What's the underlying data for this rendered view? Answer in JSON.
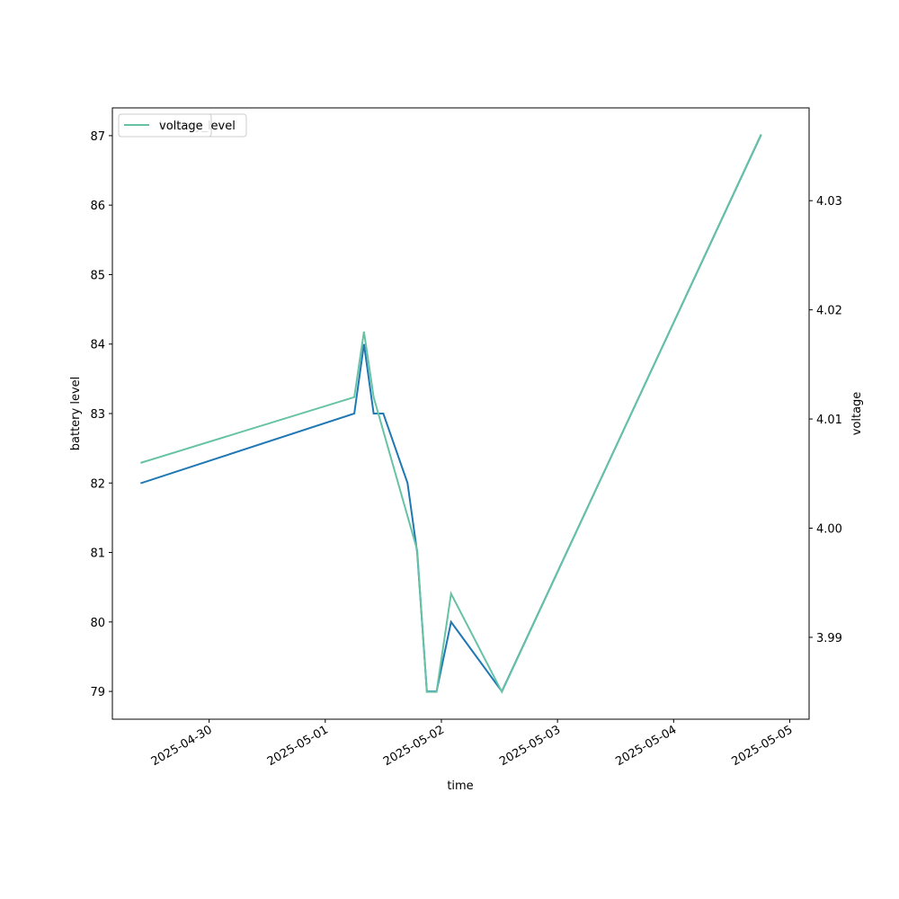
{
  "chart_data": {
    "type": "line",
    "title": "",
    "xlabel": "time",
    "ylabel_left": "battery level",
    "ylabel_right": "voltage",
    "x_ticks": [
      "2025-04-30",
      "2025-05-01",
      "2025-05-02",
      "2025-05-03",
      "2025-05-04",
      "2025-05-05"
    ],
    "y_left_ticks": [
      79,
      80,
      81,
      82,
      83,
      84,
      85,
      86,
      87
    ],
    "y_right_ticks": [
      3.99,
      4.0,
      4.01,
      4.02,
      4.03
    ],
    "y_right_tick_labels": [
      "3.99",
      "4.00",
      "4.01",
      "4.02",
      "4.03"
    ],
    "y_left_lim": [
      78.6,
      87.4
    ],
    "y_right_lim": [
      3.9825,
      4.0385
    ],
    "x_lim": [
      "2025-04-29 04:00",
      "2025-05-05 04:00"
    ],
    "grid": false,
    "legend": {
      "placement": "upper-left",
      "overlapping": true,
      "entries": [
        {
          "label": "battery_level",
          "color": "#1f77b4"
        },
        {
          "label": "voltage",
          "color": "#66c2a5"
        }
      ]
    },
    "series": [
      {
        "name": "battery_level",
        "axis": "left",
        "color": "#1f77b4",
        "points": [
          {
            "t": "2025-04-29 10:00",
            "v": 82
          },
          {
            "t": "2025-05-01 06:00",
            "v": 83
          },
          {
            "t": "2025-05-01 08:00",
            "v": 84
          },
          {
            "t": "2025-05-01 10:00",
            "v": 83
          },
          {
            "t": "2025-05-01 12:00",
            "v": 83
          },
          {
            "t": "2025-05-01 17:00",
            "v": 82
          },
          {
            "t": "2025-05-01 19:00",
            "v": 81
          },
          {
            "t": "2025-05-01 21:00",
            "v": 79
          },
          {
            "t": "2025-05-01 23:00",
            "v": 79
          },
          {
            "t": "2025-05-02 02:00",
            "v": 80
          },
          {
            "t": "2025-05-02 12:30",
            "v": 79
          },
          {
            "t": "2025-05-04 18:00",
            "v": 87
          }
        ]
      },
      {
        "name": "voltage",
        "axis": "right",
        "color": "#66c2a5",
        "points": [
          {
            "t": "2025-04-29 10:00",
            "v": 4.006
          },
          {
            "t": "2025-05-01 06:00",
            "v": 4.012
          },
          {
            "t": "2025-05-01 08:00",
            "v": 4.018
          },
          {
            "t": "2025-05-01 10:00",
            "v": 4.012
          },
          {
            "t": "2025-05-01 19:00",
            "v": 3.998
          },
          {
            "t": "2025-05-01 21:00",
            "v": 3.985
          },
          {
            "t": "2025-05-01 23:00",
            "v": 3.985
          },
          {
            "t": "2025-05-02 02:00",
            "v": 3.994
          },
          {
            "t": "2025-05-02 12:30",
            "v": 3.985
          },
          {
            "t": "2025-05-04 18:00",
            "v": 4.036
          }
        ]
      }
    ]
  }
}
